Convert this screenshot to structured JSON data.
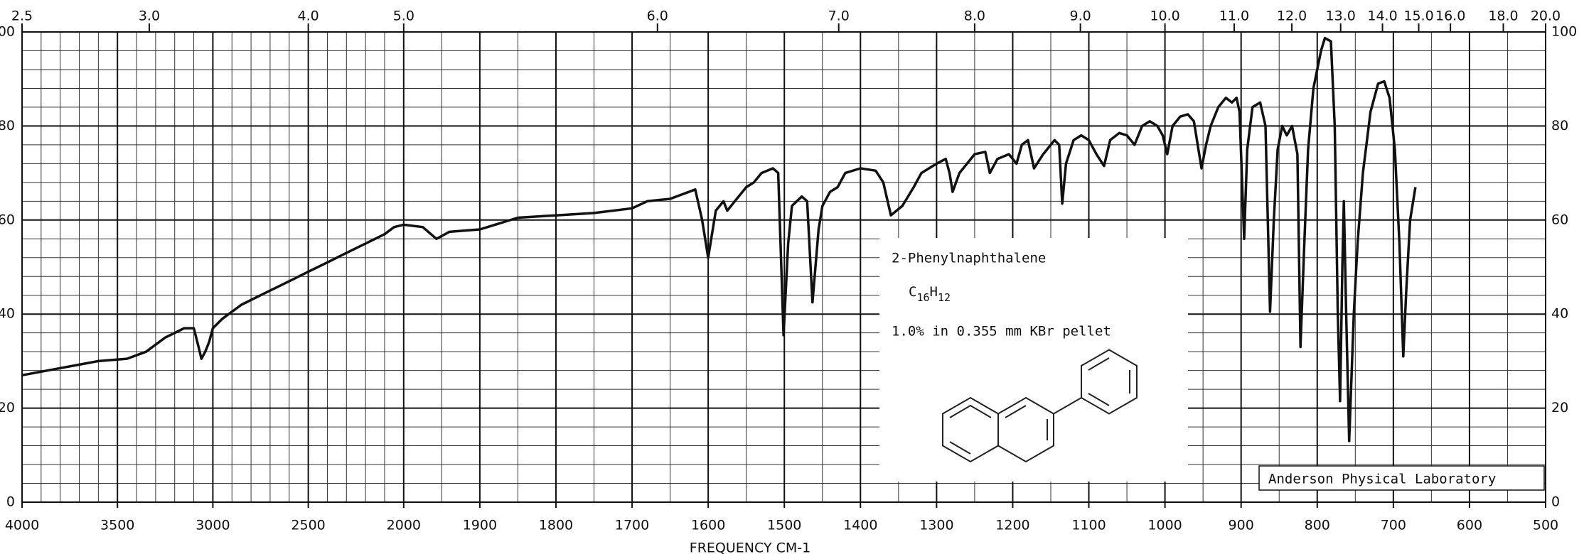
{
  "chart_data": {
    "type": "line",
    "x_label": "FREQUENCY CM-1",
    "x": [
      4000,
      3800,
      3600,
      3450,
      3350,
      3250,
      3150,
      3100,
      3075,
      3060,
      3040,
      3020,
      3000,
      2950,
      2850,
      2700,
      2600,
      2500,
      2400,
      2300,
      2200,
      2100,
      2050,
      2000,
      1975,
      1957,
      1940,
      1900,
      1880,
      1850,
      1800,
      1750,
      1700,
      1680,
      1650,
      1617,
      1608,
      1600,
      1590,
      1580,
      1575,
      1565,
      1550,
      1540,
      1530,
      1515,
      1508,
      1501,
      1495,
      1490,
      1477,
      1470,
      1463,
      1455,
      1450,
      1440,
      1430,
      1420,
      1400,
      1380,
      1370,
      1360,
      1345,
      1330,
      1320,
      1300,
      1288,
      1283,
      1279,
      1270,
      1250,
      1236,
      1230,
      1220,
      1205,
      1195,
      1188,
      1180,
      1172,
      1160,
      1145,
      1139,
      1135,
      1130,
      1120,
      1110,
      1100,
      1090,
      1080,
      1072,
      1060,
      1050,
      1040,
      1030,
      1020,
      1010,
      1003,
      997,
      990,
      980,
      970,
      962,
      956,
      952,
      946,
      940,
      930,
      920,
      912,
      906,
      902,
      896,
      892,
      885,
      875,
      868,
      862,
      857,
      852,
      846,
      840,
      833,
      826,
      822,
      817,
      812,
      805,
      795,
      790,
      782,
      777,
      773,
      770,
      767,
      765,
      762,
      758,
      752,
      747,
      740,
      730,
      720,
      712,
      705,
      698,
      692,
      687,
      683,
      678,
      671
    ],
    "values": [
      27,
      28.5,
      30,
      30.5,
      32,
      35,
      37,
      37,
      33,
      30.5,
      32,
      34,
      37,
      39,
      42,
      45,
      47,
      49,
      51,
      53,
      55,
      57,
      58.5,
      59,
      58.5,
      56,
      57.5,
      58,
      59,
      60.5,
      61,
      61.5,
      62.5,
      64,
      64.5,
      66.5,
      60,
      52,
      62,
      64,
      62,
      64,
      67,
      68,
      70,
      71,
      70,
      35.5,
      55,
      63,
      65,
      64,
      42.5,
      58,
      63,
      66,
      67,
      70,
      71,
      70.5,
      68,
      61,
      63,
      67,
      70,
      72,
      73,
      70,
      66,
      70,
      74,
      74.5,
      70,
      73,
      74,
      72,
      76,
      77,
      71,
      74,
      77,
      76,
      63.5,
      72,
      77,
      78,
      77,
      74,
      71.5,
      77,
      78.5,
      78,
      76,
      80,
      81,
      80,
      78,
      74,
      80,
      82,
      82.5,
      81,
      75,
      71,
      76,
      80,
      84,
      86,
      85,
      86,
      83,
      56,
      75,
      84,
      85,
      80,
      40.5,
      60,
      75,
      80,
      78,
      80,
      74,
      33,
      55,
      75,
      88,
      96,
      98.7,
      98,
      80,
      40,
      21.5,
      50,
      64,
      40,
      13,
      40,
      55,
      70,
      83,
      89,
      89.5,
      86,
      75,
      55,
      31,
      45,
      60,
      67
    ],
    "color": "#111111",
    "xlim": [
      4000,
      500
    ],
    "ylim": [
      0,
      100
    ],
    "xticks": [
      4000,
      3500,
      3000,
      2500,
      2000,
      1900,
      1800,
      1700,
      1600,
      1500,
      1400,
      1300,
      1200,
      1100,
      1000,
      900,
      800,
      700,
      600,
      500
    ],
    "yticks": [
      0,
      20,
      40,
      60,
      80,
      100
    ],
    "x2ticks": [
      2.5,
      {
        "value": 3,
        "label": "3.0"
      },
      {
        "value": 4,
        "label": "4.0"
      },
      {
        "value": 5,
        "label": "5.0"
      },
      {
        "value": 6,
        "label": "6.0"
      },
      {
        "value": 7,
        "label": "7.0"
      },
      {
        "value": 8,
        "label": "8.0"
      },
      {
        "value": 9,
        "label": "9.0"
      },
      {
        "value": 10,
        "label": "10.0"
      },
      {
        "value": 11,
        "label": "11.0"
      },
      {
        "value": 12,
        "label": "12.0"
      },
      {
        "value": 13,
        "label": "13.0"
      },
      {
        "value": 14,
        "label": "14.0"
      },
      {
        "value": 15,
        "label": "15.0"
      },
      {
        "value": 16,
        "label": "16.0"
      },
      {
        "value": 18,
        "label": "18.0"
      },
      {
        "value": 20,
        "label": "20.0"
      }
    ],
    "grid": true,
    "sample_name": "2-Phenylnaphthalene",
    "formula": [
      "C",
      "16",
      "H",
      "12"
    ],
    "conditions": "1.0% in 0.355 mm  KBr pellet",
    "laboratory": "Anderson Physical Laboratory"
  }
}
